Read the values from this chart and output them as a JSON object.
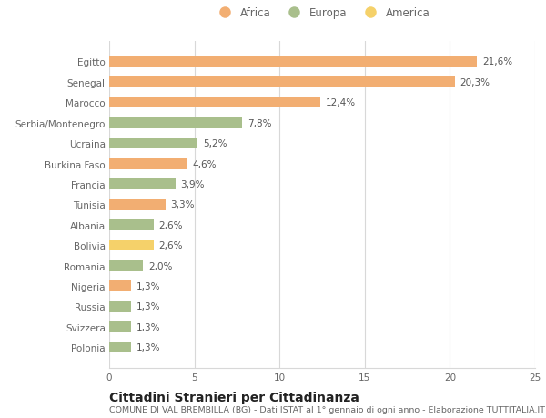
{
  "categories": [
    "Egitto",
    "Senegal",
    "Marocco",
    "Serbia/Montenegro",
    "Ucraina",
    "Burkina Faso",
    "Francia",
    "Tunisia",
    "Albania",
    "Bolivia",
    "Romania",
    "Nigeria",
    "Russia",
    "Svizzera",
    "Polonia"
  ],
  "values": [
    21.6,
    20.3,
    12.4,
    7.8,
    5.2,
    4.6,
    3.9,
    3.3,
    2.6,
    2.6,
    2.0,
    1.3,
    1.3,
    1.3,
    1.3
  ],
  "labels": [
    "21,6%",
    "20,3%",
    "12,4%",
    "7,8%",
    "5,2%",
    "4,6%",
    "3,9%",
    "3,3%",
    "2,6%",
    "2,6%",
    "2,0%",
    "1,3%",
    "1,3%",
    "1,3%",
    "1,3%"
  ],
  "continents": [
    "Africa",
    "Africa",
    "Africa",
    "Europa",
    "Europa",
    "Africa",
    "Europa",
    "Africa",
    "Europa",
    "America",
    "Europa",
    "Africa",
    "Europa",
    "Europa",
    "Europa"
  ],
  "colors": {
    "Africa": "#F2AE72",
    "Europa": "#A9BF8C",
    "America": "#F5D16A"
  },
  "legend_labels": [
    "Africa",
    "Europa",
    "America"
  ],
  "legend_colors": [
    "#F2AE72",
    "#A9BF8C",
    "#F5D16A"
  ],
  "xlim": [
    0,
    25
  ],
  "xticks": [
    0,
    5,
    10,
    15,
    20,
    25
  ],
  "title": "Cittadini Stranieri per Cittadinanza",
  "subtitle": "COMUNE DI VAL BREMBILLA (BG) - Dati ISTAT al 1° gennaio di ogni anno - Elaborazione TUTTITALIA.IT",
  "background_color": "#ffffff",
  "grid_color": "#d8d8d8",
  "bar_height": 0.55,
  "label_fontsize": 7.5,
  "tick_fontsize": 7.5,
  "title_fontsize": 10,
  "subtitle_fontsize": 6.8,
  "legend_fontsize": 8.5
}
